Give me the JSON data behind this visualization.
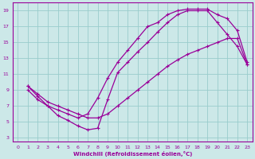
{
  "xlabel": "Windchill (Refroidissement éolien,°C)",
  "bg_color": "#cce8e8",
  "line_color": "#990099",
  "xlim": [
    -0.5,
    23.5
  ],
  "ylim": [
    2.5,
    20.0
  ],
  "xticks": [
    0,
    1,
    2,
    3,
    4,
    5,
    6,
    7,
    8,
    9,
    10,
    11,
    12,
    13,
    14,
    15,
    16,
    17,
    18,
    19,
    20,
    21,
    22,
    23
  ],
  "yticks": [
    3,
    5,
    7,
    9,
    11,
    13,
    15,
    17,
    19
  ],
  "grid_color": "#99cccc",
  "curve_top_x": [
    1,
    2,
    3,
    4,
    5,
    6,
    7,
    8,
    9,
    10,
    11,
    12,
    13,
    14,
    15,
    16,
    17,
    18,
    19,
    20,
    21,
    22,
    23
  ],
  "curve_top_y": [
    9.5,
    8.2,
    7.0,
    6.5,
    6.0,
    5.5,
    6.0,
    8.0,
    10.5,
    12.5,
    14.0,
    15.5,
    17.0,
    17.5,
    18.5,
    19.0,
    19.2,
    19.2,
    19.2,
    18.5,
    18.0,
    16.5,
    12.5
  ],
  "curve_mid_x": [
    1,
    2,
    3,
    4,
    5,
    6,
    7,
    8,
    9,
    10,
    11,
    12,
    13,
    14,
    15,
    16,
    17,
    18,
    19,
    20,
    21,
    22,
    23
  ],
  "curve_mid_y": [
    9.0,
    7.8,
    7.0,
    5.8,
    5.2,
    4.5,
    4.0,
    4.2,
    7.8,
    11.2,
    12.5,
    13.8,
    15.0,
    16.3,
    17.5,
    18.5,
    19.0,
    19.0,
    19.0,
    17.5,
    16.0,
    14.5,
    12.2
  ],
  "curve_bot_x": [
    1,
    2,
    3,
    4,
    5,
    6,
    7,
    8,
    9,
    10,
    11,
    12,
    13,
    14,
    15,
    16,
    17,
    18,
    19,
    20,
    21,
    22,
    23
  ],
  "curve_bot_y": [
    9.5,
    8.5,
    7.5,
    7.0,
    6.5,
    6.0,
    5.5,
    5.5,
    6.0,
    7.0,
    8.0,
    9.0,
    10.0,
    11.0,
    12.0,
    12.8,
    13.5,
    14.0,
    14.5,
    15.0,
    15.5,
    15.5,
    12.2
  ]
}
